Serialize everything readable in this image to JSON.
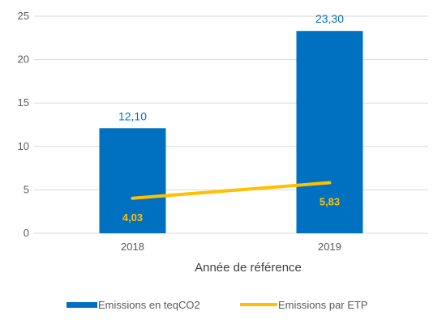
{
  "chart_data": {
    "type": "bar",
    "categories": [
      "2018",
      "2019"
    ],
    "xlabel": "Année de référence",
    "ylabel": "",
    "ylim": [
      0,
      25
    ],
    "yticks": [
      "0",
      "5",
      "10",
      "15",
      "20",
      "25"
    ],
    "grid": true,
    "legend_position": "bottom",
    "series": [
      {
        "name": "Emissions en teqCO2",
        "type": "bar",
        "values": [
          12.1,
          23.3
        ],
        "labels": [
          "12,10",
          "23,30"
        ],
        "color": "#0070C0",
        "label_color": "#0070C0"
      },
      {
        "name": "Emissions par ETP",
        "type": "line",
        "values": [
          4.03,
          5.83
        ],
        "labels": [
          "4,03",
          "5,83"
        ],
        "color": "#FFC000",
        "label_color": "#FFC000"
      }
    ]
  }
}
